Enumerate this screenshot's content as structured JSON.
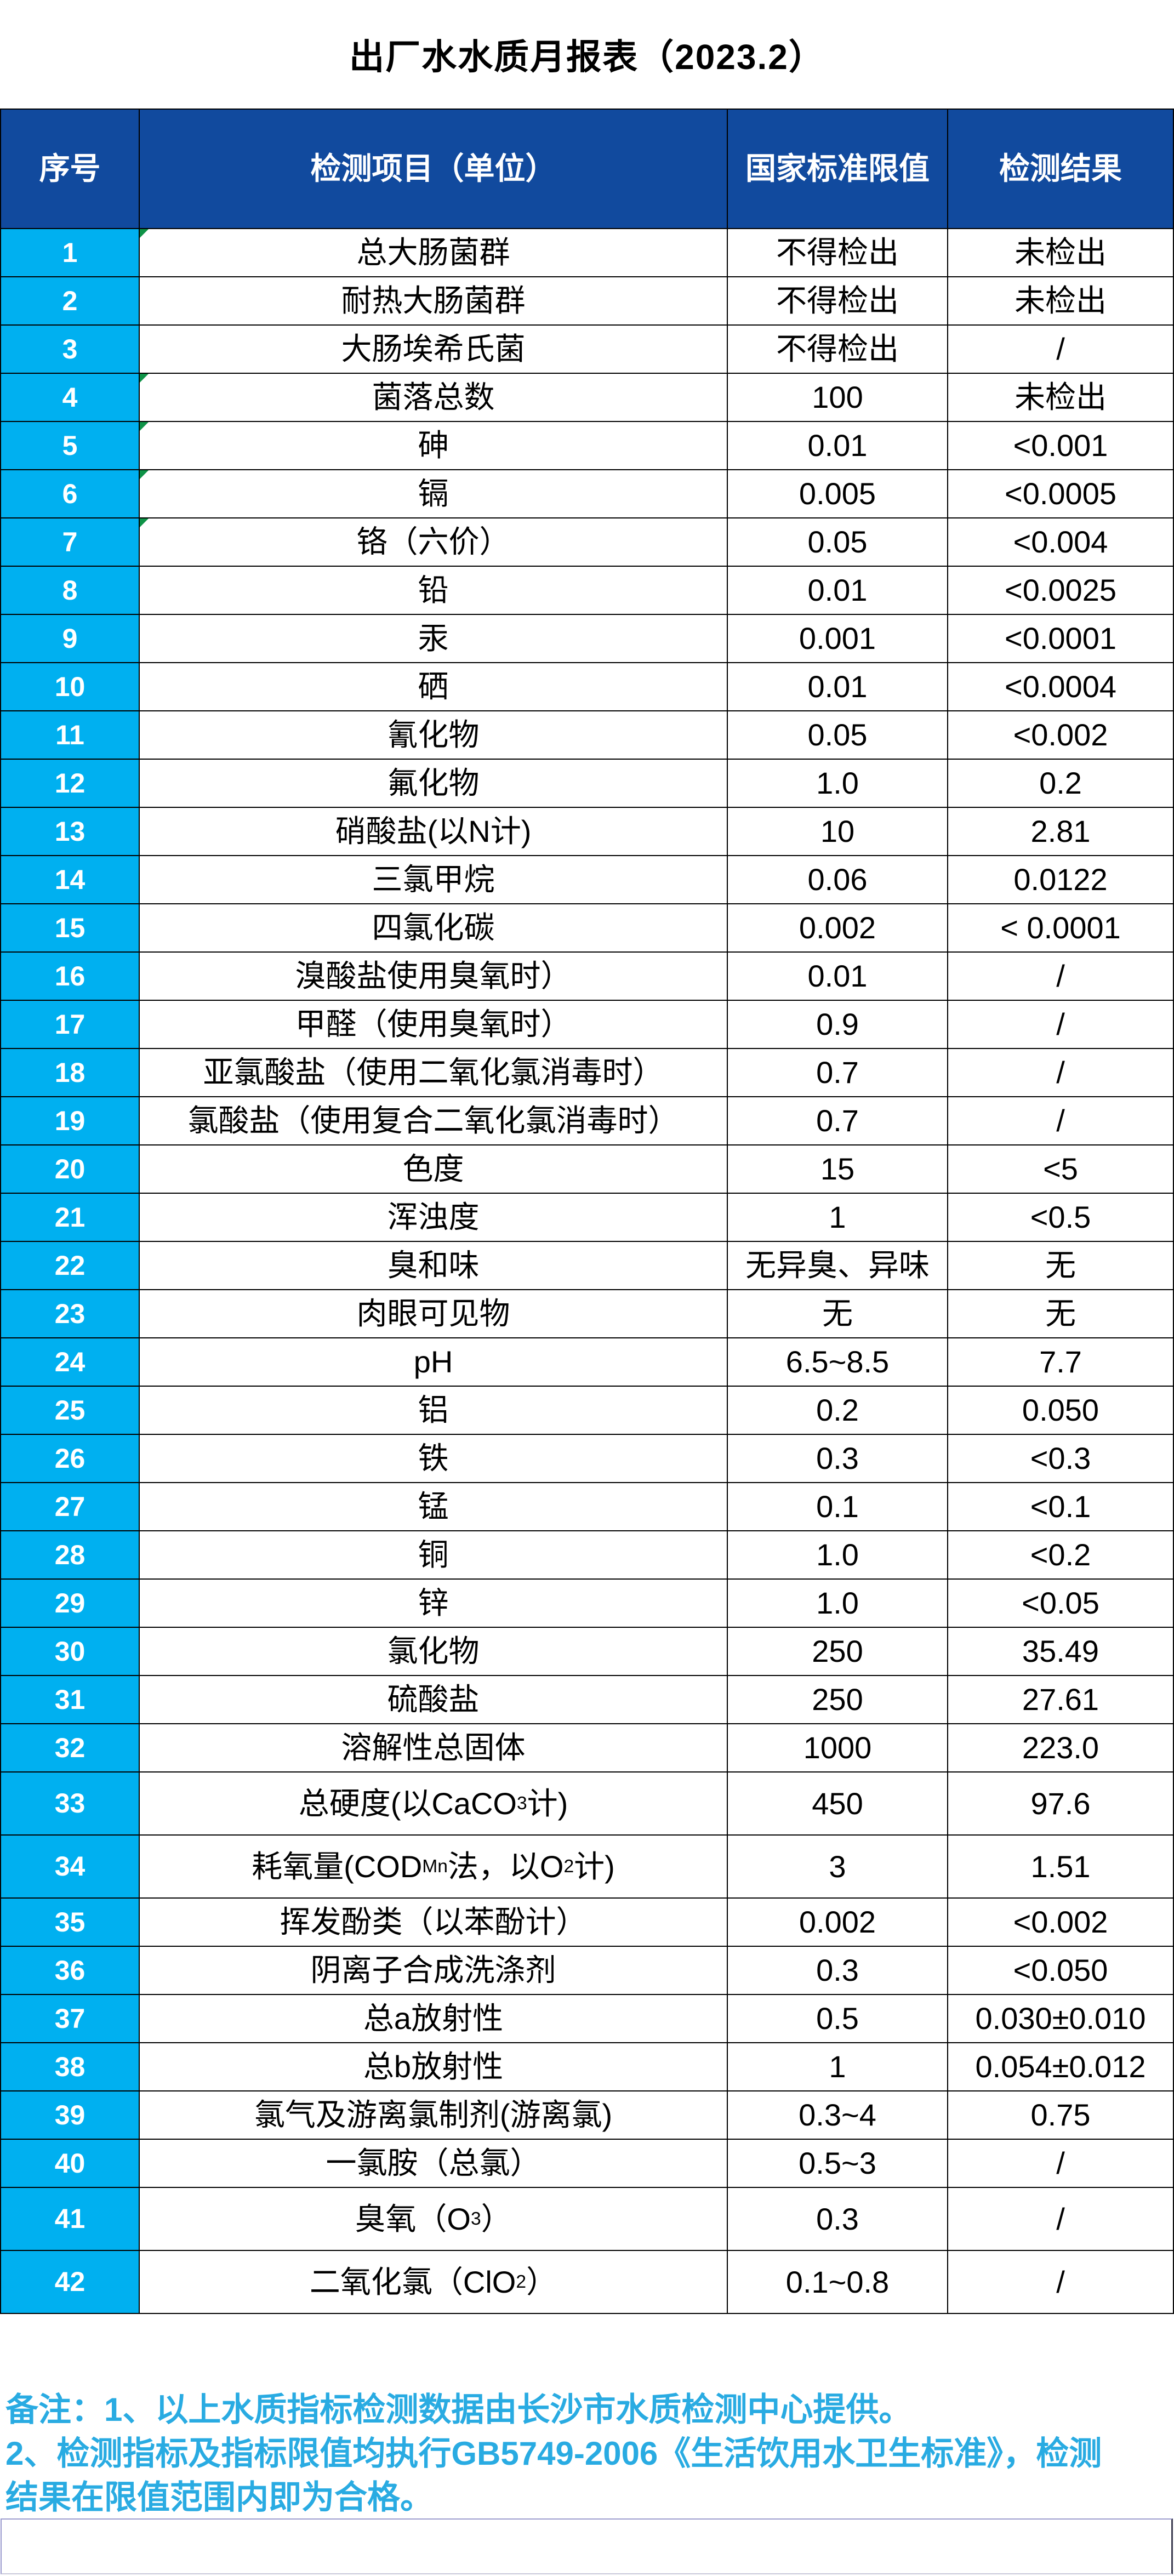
{
  "title": "出厂水水质月报表（2023.2）",
  "colors": {
    "header_bg": "#114A9E",
    "seq_bg": "#00B0F0",
    "flag_green": "#0E9347",
    "footer_text": "#29ABE2",
    "border": "#000000",
    "frame_border": "#9B9BCE",
    "header_text": "#FFFFFF",
    "cell_text": "#000000"
  },
  "table": {
    "headers": {
      "seq": "序号",
      "item": "检测项目（单位）",
      "limit": "国家标准限值",
      "result": "检测结果"
    },
    "rows": [
      {
        "no": "1",
        "item": "总大肠菌群",
        "limit": "不得检出",
        "result": "未检出",
        "flag": true
      },
      {
        "no": "2",
        "item": "耐热大肠菌群",
        "limit": "不得检出",
        "result": "未检出"
      },
      {
        "no": "3",
        "item": "大肠埃希氏菌",
        "limit": "不得检出",
        "result": "/"
      },
      {
        "no": "4",
        "item": "菌落总数",
        "limit": "100",
        "result": "未检出",
        "flag": true
      },
      {
        "no": "5",
        "item": "砷",
        "limit": "0.01",
        "result": "<0.001",
        "flag": true
      },
      {
        "no": "6",
        "item": "镉",
        "limit": "0.005",
        "result": "<0.0005",
        "flag": true
      },
      {
        "no": "7",
        "item": "铬（六价）",
        "limit": "0.05",
        "result": "<0.004",
        "flag": true
      },
      {
        "no": "8",
        "item": "铅",
        "limit": "0.01",
        "result": "<0.0025"
      },
      {
        "no": "9",
        "item": "汞",
        "limit": "0.001",
        "result": "<0.0001"
      },
      {
        "no": "10",
        "item": "硒",
        "limit": "0.01",
        "result": "<0.0004"
      },
      {
        "no": "11",
        "item": "氰化物",
        "limit": "0.05",
        "result": "<0.002"
      },
      {
        "no": "12",
        "item": "氟化物",
        "limit": "1.0",
        "result": "0.2"
      },
      {
        "no": "13",
        "item": "硝酸盐(以N计)",
        "limit": "10",
        "result": "2.81"
      },
      {
        "no": "14",
        "item": "三氯甲烷",
        "limit": "0.06",
        "result": "0.0122"
      },
      {
        "no": "15",
        "item": "四氯化碳",
        "limit": "0.002",
        "result": "< 0.0001"
      },
      {
        "no": "16",
        "item": "溴酸盐使用臭氧时）",
        "limit": "0.01",
        "result": "/"
      },
      {
        "no": "17",
        "item": "甲醛（使用臭氧时）",
        "limit": "0.9",
        "result": "/"
      },
      {
        "no": "18",
        "item": "亚氯酸盐（使用二氧化氯消毒时）",
        "limit": "0.7",
        "result": "/"
      },
      {
        "no": "19",
        "item": "氯酸盐（使用复合二氧化氯消毒时）",
        "limit": "0.7",
        "result": "/"
      },
      {
        "no": "20",
        "item": "色度",
        "limit": "15",
        "result": "<5"
      },
      {
        "no": "21",
        "item": "浑浊度",
        "limit": "1",
        "result": "<0.5"
      },
      {
        "no": "22",
        "item": "臭和味",
        "limit": "无异臭、异味",
        "result": "无"
      },
      {
        "no": "23",
        "item": "肉眼可见物",
        "limit": "无",
        "result": "无"
      },
      {
        "no": "24",
        "item": "pH",
        "limit": "6.5~8.5",
        "result": "7.7"
      },
      {
        "no": "25",
        "item": "铝",
        "limit": "0.2",
        "result": "0.050"
      },
      {
        "no": "26",
        "item": "铁",
        "limit": "0.3",
        "result": "<0.3"
      },
      {
        "no": "27",
        "item": "锰",
        "limit": "0.1",
        "result": "<0.1"
      },
      {
        "no": "28",
        "item": "铜",
        "limit": "1.0",
        "result": "<0.2"
      },
      {
        "no": "29",
        "item": "锌",
        "limit": "1.0",
        "result": "<0.05"
      },
      {
        "no": "30",
        "item": "氯化物",
        "limit": "250",
        "result": "35.49"
      },
      {
        "no": "31",
        "item": "硫酸盐",
        "limit": "250",
        "result": "27.61"
      },
      {
        "no": "32",
        "item": "溶解性总固体",
        "limit": "1000",
        "result": "223.0"
      },
      {
        "no": "33",
        "item": "总硬度(以CaCO⟨3⟩计)",
        "limit": "450",
        "result": "97.6",
        "tall": true
      },
      {
        "no": "34",
        "item": "耗氧量(COD⟨Mn⟩法，以O⟨2⟩计)",
        "limit": "3",
        "result": "1.51",
        "tall": true
      },
      {
        "no": "35",
        "item": "挥发酚类（以苯酚计）",
        "limit": "0.002",
        "result": "<0.002"
      },
      {
        "no": "36",
        "item": "阴离子合成洗涤剂",
        "limit": "0.3",
        "result": "<0.050"
      },
      {
        "no": "37",
        "item": "总a放射性",
        "limit": "0.5",
        "result": "0.030±0.010"
      },
      {
        "no": "38",
        "item": "总b放射性",
        "limit": "1",
        "result": "0.054±0.012"
      },
      {
        "no": "39",
        "item": "氯气及游离氯制剂(游离氯)",
        "limit": "0.3~4",
        "result": "0.75"
      },
      {
        "no": "40",
        "item": "一氯胺（总氯）",
        "limit": "0.5~3",
        "result": "/"
      },
      {
        "no": "41",
        "item": "臭氧（O⟨3⟩）",
        "limit": "0.3",
        "result": "/",
        "tall": true
      },
      {
        "no": "42",
        "item": "二氧化氯（ClO⟨2⟩）",
        "limit": "0.1~0.8",
        "result": "/",
        "tall": true
      }
    ]
  },
  "footer": {
    "lines": [
      "备注：1、以上水质指标检测数据由长沙市水质检测中心提供。",
      "2、检测指标及指标限值均执行GB5749-2006《生活饮用水卫生标准》，检测",
      "结果在限值范围内即为合格。"
    ]
  }
}
